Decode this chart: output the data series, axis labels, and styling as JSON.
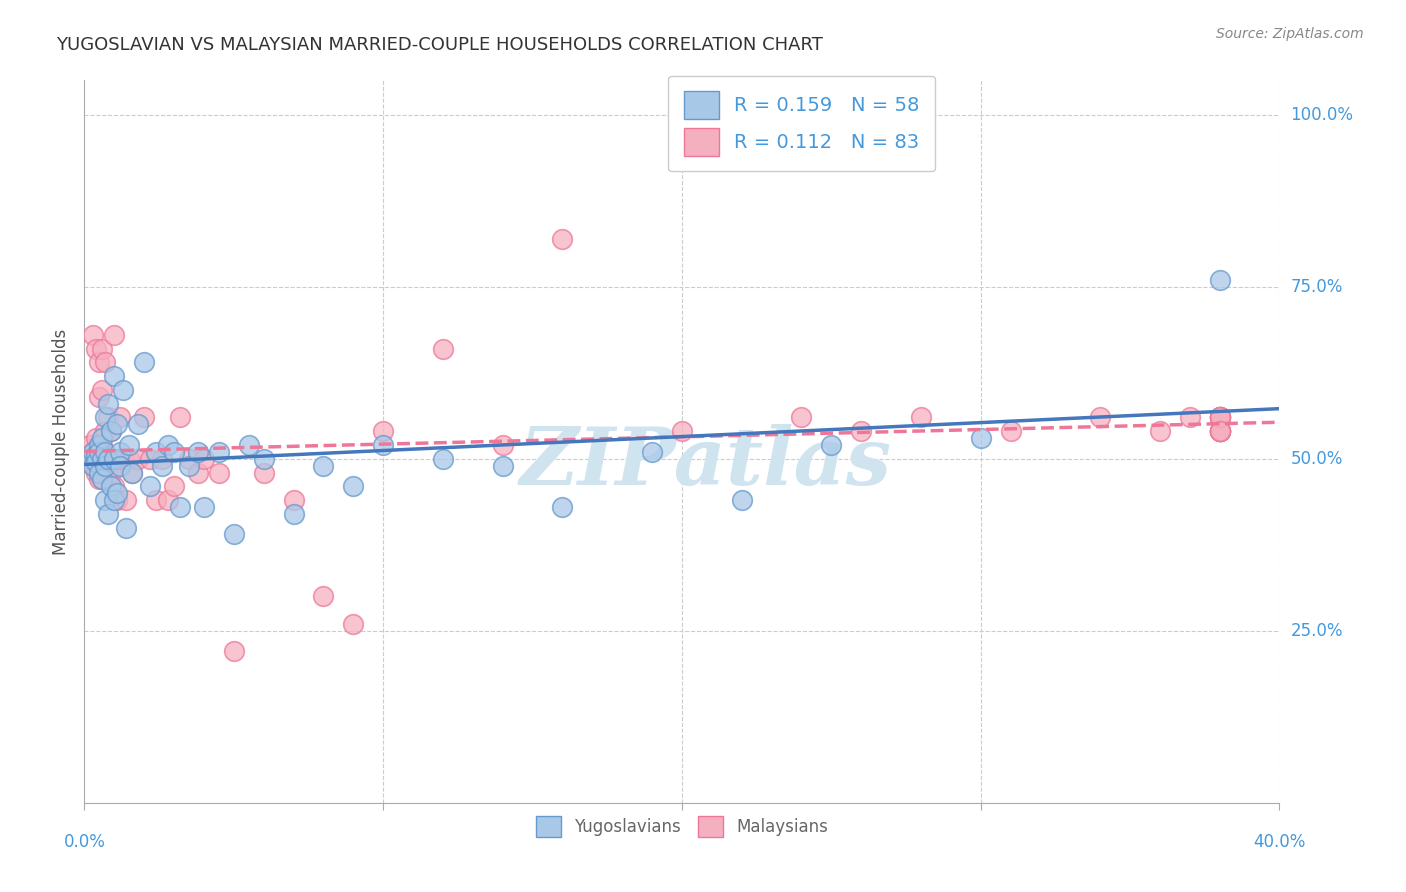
{
  "title": "YUGOSLAVIAN VS MALAYSIAN MARRIED-COUPLE HOUSEHOLDS CORRELATION CHART",
  "source": "Source: ZipAtlas.com",
  "ylabel": "Married-couple Households",
  "ytick_values": [
    0.0,
    0.25,
    0.5,
    0.75,
    1.0
  ],
  "ytick_labels": [
    "",
    "25.0%",
    "50.0%",
    "75.0%",
    "100.0%"
  ],
  "xlim": [
    0.0,
    0.4
  ],
  "ylim": [
    0.0,
    1.05
  ],
  "yug_R": 0.159,
  "yug_N": 58,
  "mal_R": 0.112,
  "mal_N": 83,
  "yug_color": "#a8c8e8",
  "mal_color": "#f5b0c0",
  "yug_edge_color": "#6699cc",
  "mal_edge_color": "#ee7799",
  "yug_line_color": "#4477bb",
  "mal_line_color": "#ee7799",
  "watermark_color": "#d0e4f0",
  "background_color": "#ffffff",
  "grid_color": "#cccccc",
  "title_color": "#333333",
  "right_label_color": "#4499dd",
  "ylabel_color": "#555555",
  "source_color": "#888888",
  "legend_label_color": "#4499dd",
  "bottom_label_color": "#666666",
  "yug_scatter_x": [
    0.002,
    0.003,
    0.003,
    0.004,
    0.004,
    0.005,
    0.005,
    0.005,
    0.006,
    0.006,
    0.006,
    0.007,
    0.007,
    0.007,
    0.007,
    0.008,
    0.008,
    0.008,
    0.009,
    0.009,
    0.01,
    0.01,
    0.01,
    0.011,
    0.011,
    0.012,
    0.012,
    0.013,
    0.014,
    0.015,
    0.016,
    0.018,
    0.02,
    0.022,
    0.024,
    0.026,
    0.028,
    0.03,
    0.032,
    0.035,
    0.038,
    0.04,
    0.045,
    0.05,
    0.055,
    0.06,
    0.07,
    0.08,
    0.09,
    0.1,
    0.12,
    0.14,
    0.16,
    0.19,
    0.22,
    0.25,
    0.3,
    0.38
  ],
  "yug_scatter_y": [
    0.5,
    0.51,
    0.49,
    0.505,
    0.495,
    0.52,
    0.48,
    0.51,
    0.53,
    0.47,
    0.5,
    0.56,
    0.44,
    0.51,
    0.49,
    0.58,
    0.42,
    0.5,
    0.54,
    0.46,
    0.62,
    0.5,
    0.44,
    0.55,
    0.45,
    0.51,
    0.49,
    0.6,
    0.4,
    0.52,
    0.48,
    0.55,
    0.64,
    0.46,
    0.51,
    0.49,
    0.52,
    0.51,
    0.43,
    0.49,
    0.51,
    0.43,
    0.51,
    0.39,
    0.52,
    0.5,
    0.42,
    0.49,
    0.46,
    0.52,
    0.5,
    0.49,
    0.43,
    0.51,
    0.44,
    0.52,
    0.53,
    0.76
  ],
  "mal_scatter_x": [
    0.002,
    0.002,
    0.003,
    0.003,
    0.003,
    0.004,
    0.004,
    0.004,
    0.004,
    0.005,
    0.005,
    0.005,
    0.005,
    0.005,
    0.006,
    0.006,
    0.006,
    0.006,
    0.006,
    0.007,
    0.007,
    0.007,
    0.007,
    0.008,
    0.008,
    0.008,
    0.008,
    0.009,
    0.009,
    0.01,
    0.01,
    0.01,
    0.011,
    0.011,
    0.012,
    0.012,
    0.013,
    0.014,
    0.015,
    0.016,
    0.018,
    0.02,
    0.022,
    0.024,
    0.026,
    0.028,
    0.03,
    0.032,
    0.035,
    0.038,
    0.04,
    0.045,
    0.05,
    0.06,
    0.07,
    0.08,
    0.09,
    0.1,
    0.12,
    0.14,
    0.16,
    0.2,
    0.24,
    0.26,
    0.28,
    0.31,
    0.34,
    0.36,
    0.37,
    0.38,
    0.38,
    0.38,
    0.38,
    0.38,
    0.38,
    0.38,
    0.38,
    0.38,
    0.38,
    0.38,
    0.38,
    0.38,
    0.38
  ],
  "mal_scatter_y": [
    0.5,
    0.52,
    0.49,
    0.51,
    0.68,
    0.48,
    0.66,
    0.5,
    0.53,
    0.64,
    0.5,
    0.47,
    0.59,
    0.52,
    0.5,
    0.47,
    0.66,
    0.6,
    0.52,
    0.5,
    0.48,
    0.64,
    0.54,
    0.5,
    0.48,
    0.5,
    0.56,
    0.48,
    0.54,
    0.5,
    0.46,
    0.68,
    0.5,
    0.44,
    0.5,
    0.56,
    0.5,
    0.44,
    0.5,
    0.48,
    0.5,
    0.56,
    0.5,
    0.44,
    0.5,
    0.44,
    0.46,
    0.56,
    0.5,
    0.48,
    0.5,
    0.48,
    0.22,
    0.48,
    0.44,
    0.3,
    0.26,
    0.54,
    0.66,
    0.52,
    0.82,
    0.54,
    0.56,
    0.54,
    0.56,
    0.54,
    0.56,
    0.54,
    0.56,
    0.54,
    0.56,
    0.54,
    0.56,
    0.54,
    0.54,
    0.56,
    0.54,
    0.56,
    0.54,
    0.56,
    0.54,
    0.56,
    0.54
  ],
  "yug_trend_x0": 0.0,
  "yug_trend_x1": 0.4,
  "yug_trend_y0": 0.49,
  "yug_trend_y1": 0.55,
  "mal_trend_x0": 0.0,
  "mal_trend_x1": 0.4,
  "mal_trend_y0": 0.51,
  "mal_trend_y1": 0.58
}
